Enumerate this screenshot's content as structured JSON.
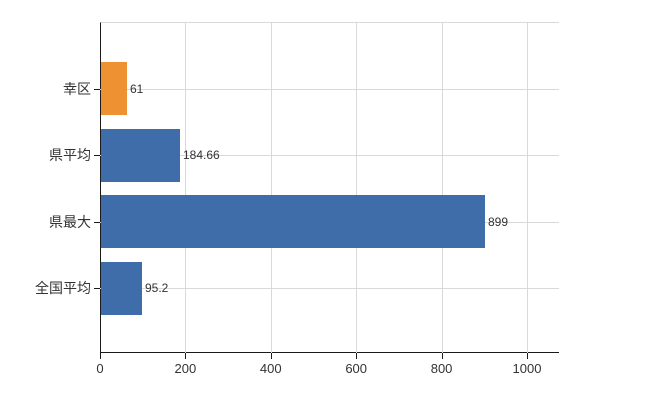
{
  "chart_data": {
    "type": "bar",
    "orientation": "horizontal",
    "title": "",
    "xlabel": "",
    "ylabel": "",
    "categories": [
      "幸区",
      "県平均",
      "県最大",
      "全国平均"
    ],
    "values": [
      61,
      184.66,
      899,
      95.2
    ],
    "value_labels": [
      "61",
      "184.66",
      "899",
      "95.2"
    ],
    "bar_colors": [
      "#ee9133",
      "#3f6da9",
      "#3f6da9",
      "#3f6da9"
    ],
    "x_ticks": [
      0,
      200,
      400,
      600,
      800,
      1000
    ],
    "x_tick_labels": [
      "0",
      "200",
      "400",
      "600",
      "800",
      "1000"
    ],
    "xlim": [
      0,
      1075
    ],
    "grid": true,
    "legend": false,
    "colors": {
      "highlight_bar": "#ee9133",
      "default_bar": "#3f6da9",
      "gridline": "#d9d9d9",
      "axis": "#1a1a1a",
      "text": "#333333",
      "background": "#ffffff"
    }
  }
}
